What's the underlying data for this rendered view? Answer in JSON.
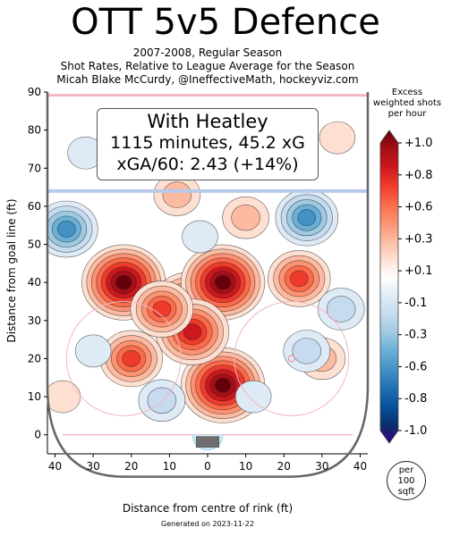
{
  "header": {
    "title": "OTT 5v5 Defence",
    "subtitle_line1": "2007-2008, Regular Season",
    "subtitle_line2": "Shot Rates, Relative to League Average for the Season",
    "subtitle_line3": "Micah Blake McCurdy, @IneffectiveMath, hockeyviz.com"
  },
  "annotation": {
    "line1": "With Heatley",
    "line2": "1115 minutes, 45.2 xG",
    "line3": "xGA/60: 2.43 (+14%)"
  },
  "colorbar": {
    "title_line1": "Excess",
    "title_line2": "weighted shots",
    "title_line3": "per hour",
    "ticks": [
      "+1.0",
      "+0.8",
      "+0.6",
      "+0.3",
      "+0.1",
      "-0.1",
      "-0.3",
      "-0.6",
      "-0.8",
      "-1.0"
    ],
    "colors": [
      "#67000d",
      "#a50f15",
      "#cb181d",
      "#ef3b2c",
      "#fb6a4a",
      "#fc9272",
      "#fcbba1",
      "#fee0d2",
      "#ffffff",
      "#deebf7",
      "#c6dbef",
      "#9ecae1",
      "#6baed6",
      "#4292c6",
      "#2171b5",
      "#08519c",
      "#08306b",
      "#3f007d"
    ]
  },
  "unit_badge": {
    "line1": "per",
    "line2": "100",
    "line3": "sqft"
  },
  "footer": {
    "generated": "Generated on 2023-11-22"
  },
  "chart_data": {
    "type": "heatmap",
    "xlabel": "Distance from centre of rink (ft)",
    "ylabel": "Distance from goal line (ft)",
    "xlim": [
      -42,
      42
    ],
    "ylim": [
      -5,
      90
    ],
    "x_ticks": [
      -40,
      -30,
      -20,
      -10,
      0,
      10,
      20,
      30,
      40
    ],
    "x_tick_labels": [
      "40",
      "30",
      "20",
      "10",
      "0",
      "10",
      "20",
      "30",
      "40"
    ],
    "y_ticks": [
      0,
      10,
      20,
      30,
      40,
      50,
      60,
      70,
      80,
      90
    ],
    "y_tick_labels": [
      "0",
      "10",
      "20",
      "30",
      "40",
      "50",
      "60",
      "70",
      "80",
      "90"
    ],
    "value_range": [
      -1.0,
      1.0
    ],
    "hot_spots": [
      {
        "x": -22,
        "y": 40,
        "value": 1.0
      },
      {
        "x": -5,
        "y": 34,
        "value": 0.8
      },
      {
        "x": 4,
        "y": 40,
        "value": 1.0
      },
      {
        "x": 4,
        "y": 13,
        "value": 1.0
      },
      {
        "x": -4,
        "y": 27,
        "value": 0.8
      },
      {
        "x": -12,
        "y": 33,
        "value": 0.6
      },
      {
        "x": -20,
        "y": 20,
        "value": 0.6
      },
      {
        "x": 24,
        "y": 41,
        "value": 0.6
      },
      {
        "x": 10,
        "y": 57,
        "value": 0.3
      },
      {
        "x": -8,
        "y": 63,
        "value": 0.3
      },
      {
        "x": 30,
        "y": 20,
        "value": 0.3
      },
      {
        "x": 34,
        "y": 78,
        "value": 0.1
      },
      {
        "x": -38,
        "y": 10,
        "value": 0.1
      }
    ],
    "cold_spots": [
      {
        "x": -37,
        "y": 54,
        "value": -0.6
      },
      {
        "x": 26,
        "y": 57,
        "value": -0.6
      },
      {
        "x": 35,
        "y": 33,
        "value": -0.3
      },
      {
        "x": 26,
        "y": 22,
        "value": -0.3
      },
      {
        "x": -12,
        "y": 9,
        "value": -0.3
      },
      {
        "x": -30,
        "y": 22,
        "value": -0.1
      },
      {
        "x": -32,
        "y": 74,
        "value": -0.1
      },
      {
        "x": -2,
        "y": 52,
        "value": -0.1
      },
      {
        "x": 12,
        "y": 10,
        "value": -0.1
      }
    ]
  }
}
